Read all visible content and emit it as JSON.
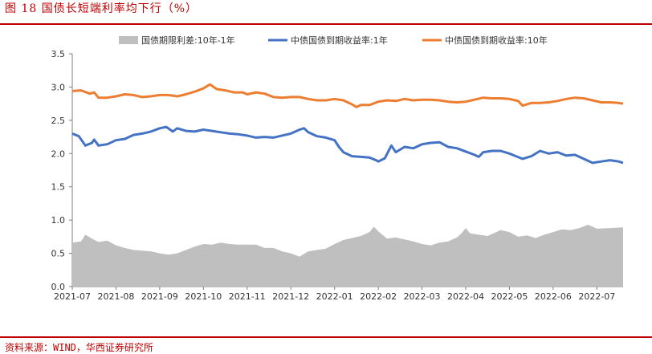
{
  "figure": {
    "title": "图 18   国债长短端利率均下行（%）",
    "source": "资料来源：WIND，华西证券研究所"
  },
  "colors": {
    "spread": "#bfbfbf",
    "y1": "#4472c4",
    "y10": "#ed7d31",
    "rule": "#c00000"
  },
  "chart_data": {
    "type": "line",
    "ylim": [
      0.0,
      3.5
    ],
    "yticks": [
      "0.0",
      "0.5",
      "1.0",
      "1.5",
      "2.0",
      "2.5",
      "3.0",
      "3.5"
    ],
    "ytick_values": [
      0,
      0.5,
      1.0,
      1.5,
      2.0,
      2.5,
      3.0,
      3.5
    ],
    "xticks": [
      "2021-07",
      "2021-08",
      "2021-09",
      "2021-10",
      "2021-11",
      "2021-12",
      "2022-01",
      "2022-02",
      "2022-03",
      "2022-04",
      "2022-05",
      "2022-06",
      "2022-07"
    ],
    "xrange": [
      0,
      12.6
    ],
    "legend_position": "top",
    "series": [
      {
        "name": "国债期限利差:10年-1年",
        "style": "area",
        "color": "#bfbfbf",
        "points": [
          [
            0,
            0.66
          ],
          [
            0.2,
            0.68
          ],
          [
            0.3,
            0.78
          ],
          [
            0.45,
            0.72
          ],
          [
            0.6,
            0.67
          ],
          [
            0.8,
            0.69
          ],
          [
            1.0,
            0.62
          ],
          [
            1.2,
            0.58
          ],
          [
            1.4,
            0.55
          ],
          [
            1.6,
            0.54
          ],
          [
            1.8,
            0.53
          ],
          [
            2.0,
            0.5
          ],
          [
            2.2,
            0.48
          ],
          [
            2.4,
            0.5
          ],
          [
            2.6,
            0.55
          ],
          [
            2.8,
            0.6
          ],
          [
            3.0,
            0.64
          ],
          [
            3.2,
            0.63
          ],
          [
            3.4,
            0.66
          ],
          [
            3.6,
            0.64
          ],
          [
            3.8,
            0.63
          ],
          [
            4.0,
            0.63
          ],
          [
            4.2,
            0.63
          ],
          [
            4.4,
            0.58
          ],
          [
            4.6,
            0.58
          ],
          [
            4.8,
            0.53
          ],
          [
            5.0,
            0.5
          ],
          [
            5.2,
            0.45
          ],
          [
            5.4,
            0.53
          ],
          [
            5.6,
            0.55
          ],
          [
            5.8,
            0.57
          ],
          [
            6.0,
            0.64
          ],
          [
            6.2,
            0.7
          ],
          [
            6.4,
            0.73
          ],
          [
            6.6,
            0.76
          ],
          [
            6.8,
            0.82
          ],
          [
            6.9,
            0.9
          ],
          [
            7.0,
            0.83
          ],
          [
            7.2,
            0.72
          ],
          [
            7.4,
            0.74
          ],
          [
            7.6,
            0.71
          ],
          [
            7.8,
            0.68
          ],
          [
            8.0,
            0.64
          ],
          [
            8.2,
            0.62
          ],
          [
            8.4,
            0.66
          ],
          [
            8.6,
            0.68
          ],
          [
            8.8,
            0.74
          ],
          [
            8.9,
            0.8
          ],
          [
            9.0,
            0.88
          ],
          [
            9.1,
            0.8
          ],
          [
            9.3,
            0.78
          ],
          [
            9.5,
            0.76
          ],
          [
            9.7,
            0.82
          ],
          [
            9.8,
            0.85
          ],
          [
            10.0,
            0.82
          ],
          [
            10.2,
            0.75
          ],
          [
            10.4,
            0.77
          ],
          [
            10.6,
            0.73
          ],
          [
            10.8,
            0.78
          ],
          [
            11.0,
            0.82
          ],
          [
            11.2,
            0.86
          ],
          [
            11.4,
            0.85
          ],
          [
            11.6,
            0.88
          ],
          [
            11.8,
            0.93
          ],
          [
            12.0,
            0.87
          ],
          [
            12.3,
            0.88
          ],
          [
            12.6,
            0.89
          ]
        ]
      },
      {
        "name": "中债国债到期收益率:1年",
        "style": "line",
        "color": "#4472c4",
        "points": [
          [
            0,
            2.3
          ],
          [
            0.15,
            2.26
          ],
          [
            0.3,
            2.12
          ],
          [
            0.45,
            2.16
          ],
          [
            0.5,
            2.21
          ],
          [
            0.6,
            2.12
          ],
          [
            0.8,
            2.14
          ],
          [
            1.0,
            2.2
          ],
          [
            1.2,
            2.22
          ],
          [
            1.4,
            2.28
          ],
          [
            1.6,
            2.3
          ],
          [
            1.8,
            2.33
          ],
          [
            2.0,
            2.38
          ],
          [
            2.15,
            2.4
          ],
          [
            2.3,
            2.33
          ],
          [
            2.4,
            2.38
          ],
          [
            2.6,
            2.34
          ],
          [
            2.8,
            2.33
          ],
          [
            3.0,
            2.36
          ],
          [
            3.2,
            2.34
          ],
          [
            3.4,
            2.32
          ],
          [
            3.6,
            2.3
          ],
          [
            3.8,
            2.29
          ],
          [
            4.0,
            2.27
          ],
          [
            4.2,
            2.24
          ],
          [
            4.4,
            2.25
          ],
          [
            4.6,
            2.24
          ],
          [
            4.8,
            2.27
          ],
          [
            5.0,
            2.3
          ],
          [
            5.2,
            2.36
          ],
          [
            5.3,
            2.38
          ],
          [
            5.4,
            2.32
          ],
          [
            5.6,
            2.26
          ],
          [
            5.8,
            2.24
          ],
          [
            6.0,
            2.2
          ],
          [
            6.1,
            2.1
          ],
          [
            6.2,
            2.02
          ],
          [
            6.4,
            1.96
          ],
          [
            6.6,
            1.95
          ],
          [
            6.8,
            1.94
          ],
          [
            6.95,
            1.9
          ],
          [
            7.0,
            1.88
          ],
          [
            7.15,
            1.93
          ],
          [
            7.3,
            2.12
          ],
          [
            7.4,
            2.02
          ],
          [
            7.6,
            2.1
          ],
          [
            7.8,
            2.08
          ],
          [
            8.0,
            2.14
          ],
          [
            8.2,
            2.16
          ],
          [
            8.4,
            2.17
          ],
          [
            8.6,
            2.1
          ],
          [
            8.8,
            2.08
          ],
          [
            9.0,
            2.03
          ],
          [
            9.2,
            1.98
          ],
          [
            9.3,
            1.95
          ],
          [
            9.4,
            2.02
          ],
          [
            9.6,
            2.04
          ],
          [
            9.8,
            2.04
          ],
          [
            10.0,
            2.0
          ],
          [
            10.15,
            1.96
          ],
          [
            10.3,
            1.92
          ],
          [
            10.5,
            1.96
          ],
          [
            10.7,
            2.04
          ],
          [
            10.9,
            2.0
          ],
          [
            11.1,
            2.02
          ],
          [
            11.3,
            1.97
          ],
          [
            11.5,
            1.98
          ],
          [
            11.7,
            1.92
          ],
          [
            11.9,
            1.86
          ],
          [
            12.1,
            1.88
          ],
          [
            12.3,
            1.9
          ],
          [
            12.5,
            1.88
          ],
          [
            12.6,
            1.86
          ]
        ]
      },
      {
        "name": "中债国债到期收益率:10年",
        "style": "line",
        "color": "#ed7d31",
        "points": [
          [
            0,
            2.94
          ],
          [
            0.2,
            2.95
          ],
          [
            0.4,
            2.9
          ],
          [
            0.5,
            2.92
          ],
          [
            0.6,
            2.84
          ],
          [
            0.8,
            2.84
          ],
          [
            1.0,
            2.86
          ],
          [
            1.2,
            2.89
          ],
          [
            1.4,
            2.88
          ],
          [
            1.6,
            2.85
          ],
          [
            1.8,
            2.86
          ],
          [
            2.0,
            2.88
          ],
          [
            2.2,
            2.88
          ],
          [
            2.4,
            2.86
          ],
          [
            2.6,
            2.89
          ],
          [
            2.8,
            2.93
          ],
          [
            3.0,
            2.98
          ],
          [
            3.15,
            3.04
          ],
          [
            3.3,
            2.97
          ],
          [
            3.5,
            2.95
          ],
          [
            3.7,
            2.92
          ],
          [
            3.9,
            2.92
          ],
          [
            4.0,
            2.89
          ],
          [
            4.2,
            2.92
          ],
          [
            4.4,
            2.9
          ],
          [
            4.6,
            2.85
          ],
          [
            4.8,
            2.84
          ],
          [
            5.0,
            2.85
          ],
          [
            5.2,
            2.85
          ],
          [
            5.4,
            2.82
          ],
          [
            5.6,
            2.8
          ],
          [
            5.8,
            2.8
          ],
          [
            6.0,
            2.82
          ],
          [
            6.2,
            2.8
          ],
          [
            6.4,
            2.74
          ],
          [
            6.5,
            2.7
          ],
          [
            6.6,
            2.73
          ],
          [
            6.8,
            2.73
          ],
          [
            7.0,
            2.78
          ],
          [
            7.2,
            2.8
          ],
          [
            7.4,
            2.79
          ],
          [
            7.6,
            2.82
          ],
          [
            7.8,
            2.8
          ],
          [
            8.0,
            2.81
          ],
          [
            8.2,
            2.81
          ],
          [
            8.4,
            2.8
          ],
          [
            8.6,
            2.78
          ],
          [
            8.8,
            2.77
          ],
          [
            9.0,
            2.78
          ],
          [
            9.2,
            2.81
          ],
          [
            9.4,
            2.84
          ],
          [
            9.6,
            2.83
          ],
          [
            9.8,
            2.83
          ],
          [
            10.0,
            2.82
          ],
          [
            10.2,
            2.79
          ],
          [
            10.3,
            2.72
          ],
          [
            10.5,
            2.76
          ],
          [
            10.7,
            2.76
          ],
          [
            10.9,
            2.77
          ],
          [
            11.1,
            2.79
          ],
          [
            11.3,
            2.82
          ],
          [
            11.5,
            2.84
          ],
          [
            11.7,
            2.83
          ],
          [
            11.9,
            2.8
          ],
          [
            12.1,
            2.77
          ],
          [
            12.3,
            2.77
          ],
          [
            12.5,
            2.76
          ],
          [
            12.6,
            2.75
          ]
        ]
      }
    ]
  }
}
